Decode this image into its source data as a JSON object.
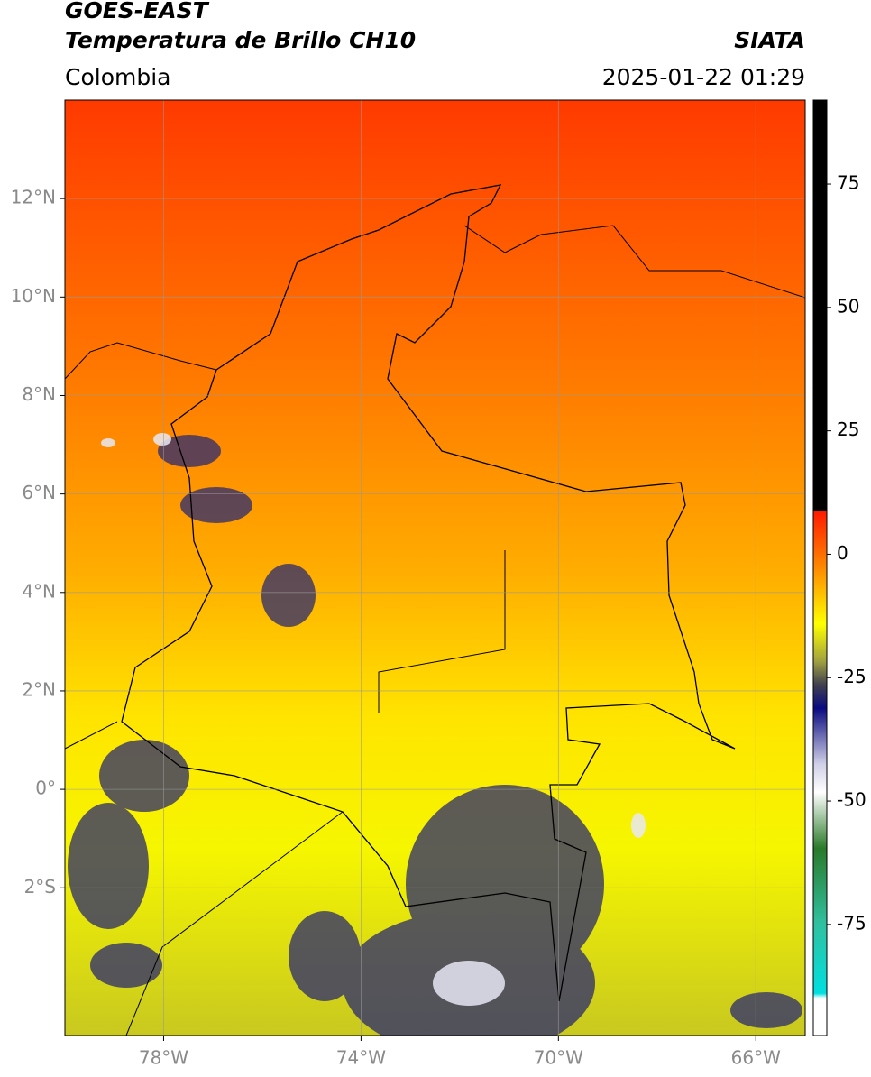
{
  "header": {
    "title": "GOES-EAST",
    "subtitle": "Temperatura de Brillo CH10",
    "source": "SIATA",
    "region": "Colombia",
    "timestamp": "2025-01-22 01:29"
  },
  "map": {
    "xlim": [
      -80,
      -65
    ],
    "ylim": [
      -5,
      14
    ],
    "xticks": [
      {
        "value": -78,
        "label": "78°W"
      },
      {
        "value": -74,
        "label": "74°W"
      },
      {
        "value": -70,
        "label": "70°W"
      },
      {
        "value": -66,
        "label": "66°W"
      }
    ],
    "yticks": [
      {
        "value": 12,
        "label": "12°N"
      },
      {
        "value": 10,
        "label": "10°N"
      },
      {
        "value": 8,
        "label": "8°N"
      },
      {
        "value": 6,
        "label": "6°N"
      },
      {
        "value": 4,
        "label": "4°N"
      },
      {
        "value": 2,
        "label": "2°N"
      },
      {
        "value": 0,
        "label": "0°"
      },
      {
        "value": -2,
        "label": "2°S"
      }
    ],
    "grid": true
  },
  "colorbar": {
    "clim": [
      -97.5,
      92
    ],
    "ticks": [
      75,
      50,
      25,
      0,
      -25,
      -50,
      -75
    ]
  }
}
